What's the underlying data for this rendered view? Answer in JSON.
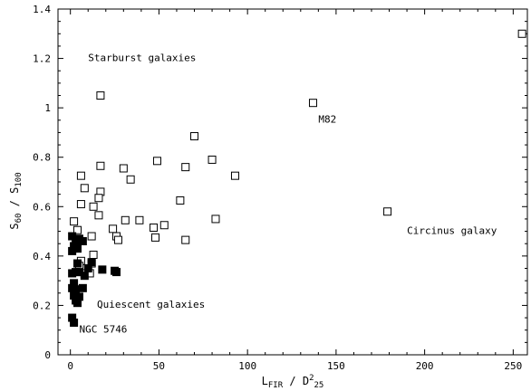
{
  "chart_data": {
    "type": "scatter",
    "title": "",
    "xlabel": {
      "main": "L",
      "sub": "FIR",
      "mid": " / D",
      "sup": "2",
      "sub2": "25"
    },
    "ylabel": {
      "main": "S",
      "sub": "60",
      "mid": " / S",
      "sub2": "100"
    },
    "xlim": [
      -7,
      258
    ],
    "ylim": [
      0,
      1.4
    ],
    "grid": false,
    "x_ticks": [
      0,
      50,
      100,
      150,
      200,
      250
    ],
    "x_tick_labels": [
      "0",
      "50",
      "100",
      "150",
      "200",
      "250"
    ],
    "y_ticks": [
      0,
      0.2,
      0.4,
      0.6,
      0.8,
      1.0,
      1.2,
      1.4
    ],
    "y_tick_labels": [
      "0",
      "0.2",
      "0.4",
      "0.6",
      "0.8",
      "1",
      "1.2",
      "1.4"
    ],
    "annotations": [
      {
        "text": "Starburst galaxies",
        "x": 10,
        "y": 1.19
      },
      {
        "text": "Quiescent galaxies",
        "x": 15,
        "y": 0.19
      },
      {
        "text": "M82",
        "x": 140,
        "y": 0.94
      },
      {
        "text": "Circinus galaxy",
        "x": 190,
        "y": 0.49
      },
      {
        "text": "NGC 5746",
        "x": 5,
        "y": 0.09
      }
    ],
    "series": [
      {
        "marker": "open-square",
        "points": [
          [
            255,
            1.3
          ],
          [
            137,
            1.02
          ],
          [
            17,
            1.05
          ],
          [
            70,
            0.885
          ],
          [
            80,
            0.79
          ],
          [
            49,
            0.785
          ],
          [
            65,
            0.76
          ],
          [
            17,
            0.765
          ],
          [
            30,
            0.755
          ],
          [
            93,
            0.725
          ],
          [
            34,
            0.71
          ],
          [
            6,
            0.725
          ],
          [
            8,
            0.675
          ],
          [
            17,
            0.66
          ],
          [
            16,
            0.635
          ],
          [
            62,
            0.625
          ],
          [
            6,
            0.61
          ],
          [
            13,
            0.6
          ],
          [
            179,
            0.58
          ],
          [
            16,
            0.565
          ],
          [
            82,
            0.55
          ],
          [
            39,
            0.545
          ],
          [
            31,
            0.545
          ],
          [
            53,
            0.525
          ],
          [
            2,
            0.54
          ],
          [
            47,
            0.515
          ],
          [
            24,
            0.51
          ],
          [
            4,
            0.505
          ],
          [
            26,
            0.48
          ],
          [
            27,
            0.465
          ],
          [
            48,
            0.475
          ],
          [
            65,
            0.465
          ],
          [
            12,
            0.48
          ],
          [
            13,
            0.405
          ],
          [
            12,
            0.37
          ],
          [
            6,
            0.38
          ],
          [
            8,
            0.33
          ],
          [
            11,
            0.33
          ],
          [
            5,
            0.36
          ]
        ]
      },
      {
        "marker": "filled-square",
        "points": [
          [
            1,
            0.48
          ],
          [
            3,
            0.46
          ],
          [
            2,
            0.44
          ],
          [
            4,
            0.43
          ],
          [
            5,
            0.47
          ],
          [
            7,
            0.46
          ],
          [
            1,
            0.42
          ],
          [
            4,
            0.37
          ],
          [
            12,
            0.375
          ],
          [
            10,
            0.35
          ],
          [
            18,
            0.345
          ],
          [
            25,
            0.34
          ],
          [
            26,
            0.335
          ],
          [
            1,
            0.33
          ],
          [
            3,
            0.335
          ],
          [
            5,
            0.335
          ],
          [
            8,
            0.32
          ],
          [
            2,
            0.29
          ],
          [
            1,
            0.27
          ],
          [
            3,
            0.265
          ],
          [
            7,
            0.27
          ],
          [
            2,
            0.24
          ],
          [
            5,
            0.235
          ],
          [
            4,
            0.21
          ],
          [
            3,
            0.22
          ],
          [
            1,
            0.15
          ],
          [
            2,
            0.13
          ]
        ]
      }
    ]
  }
}
